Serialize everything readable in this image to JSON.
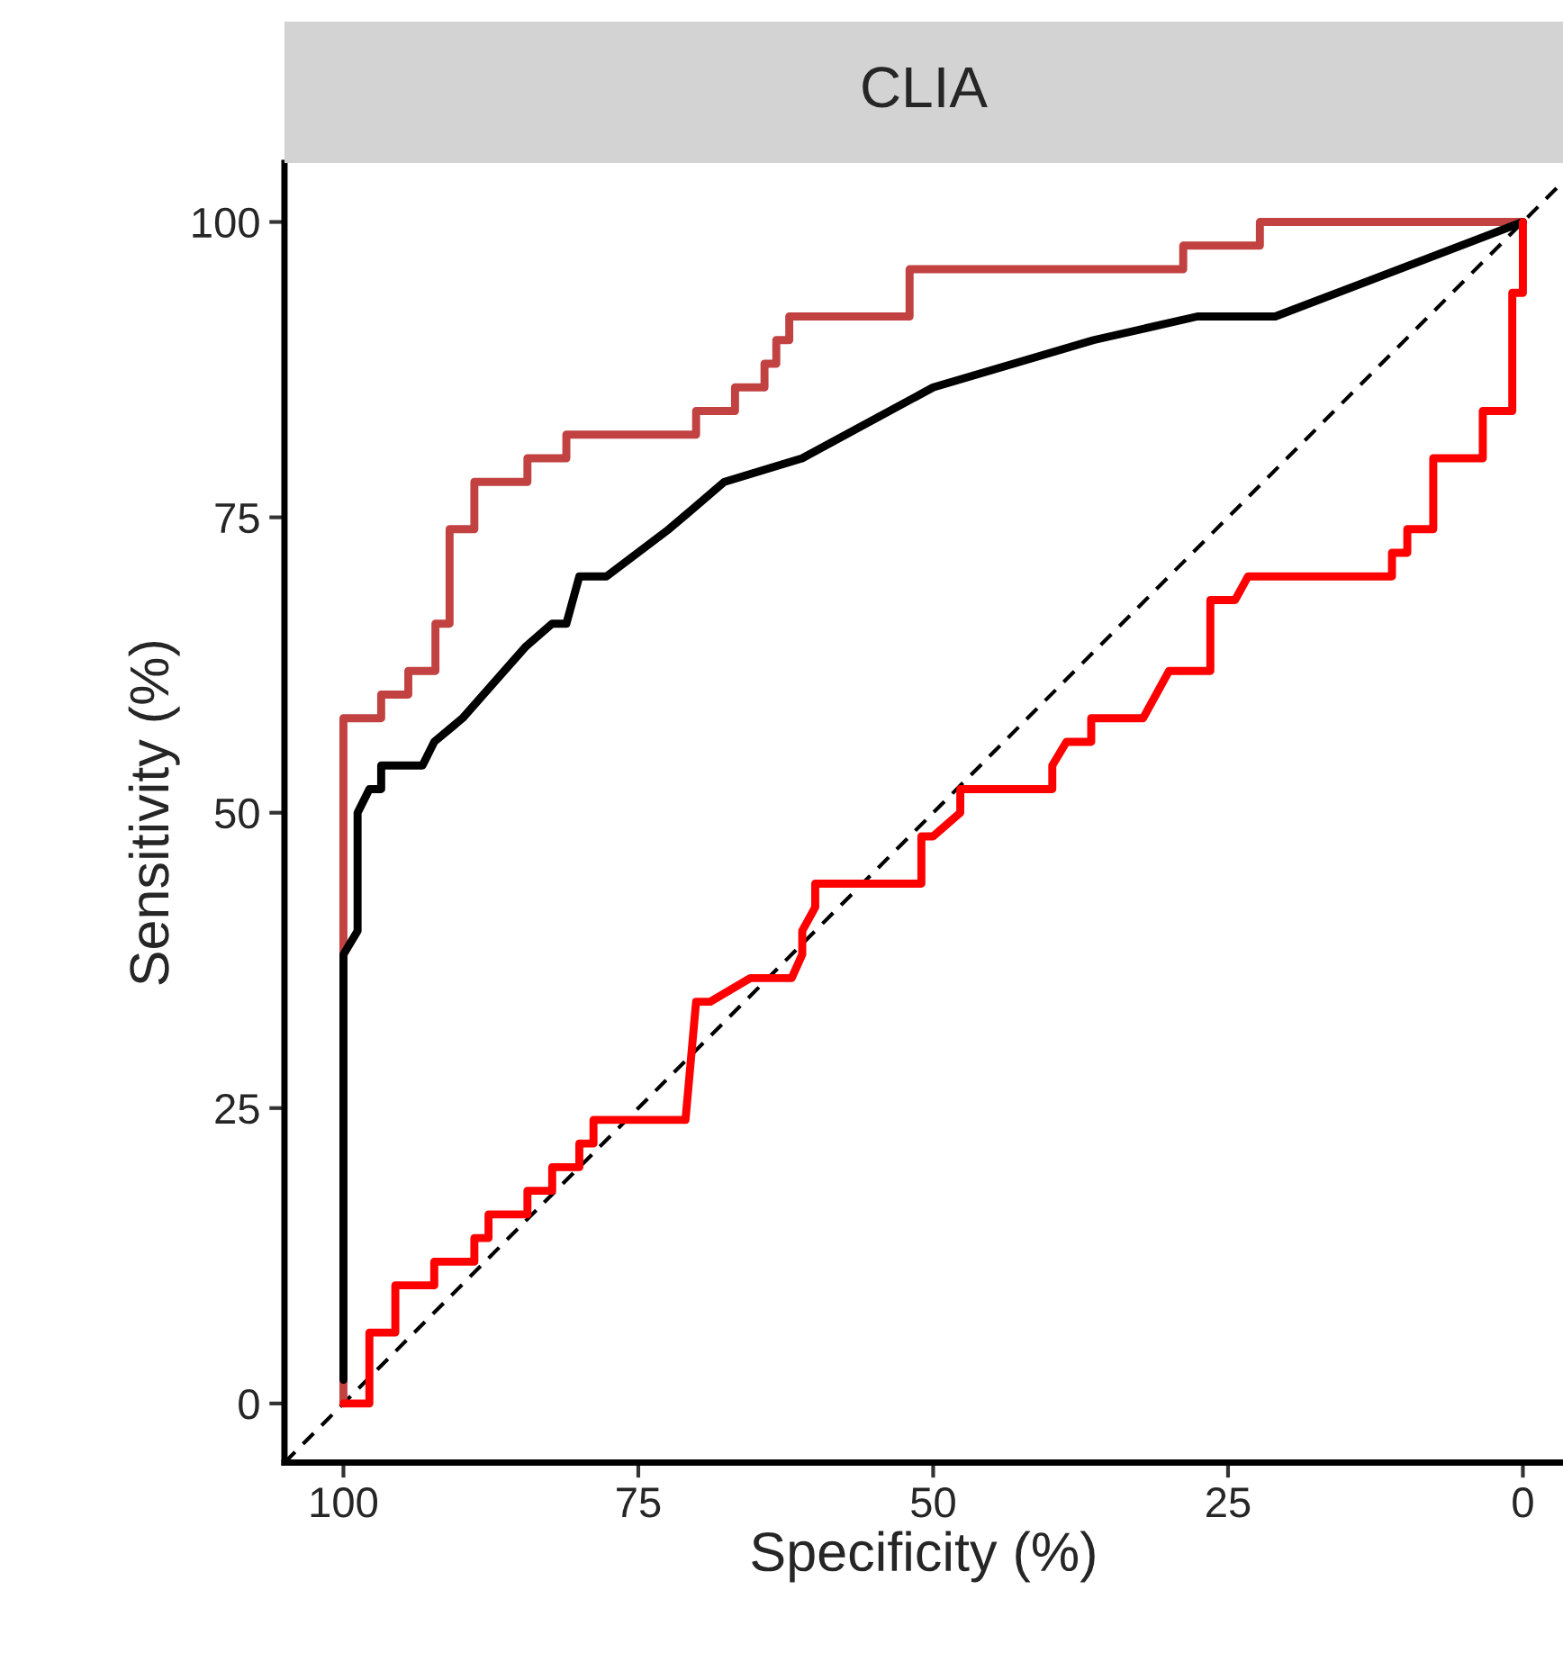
{
  "chart_data": {
    "type": "line",
    "title": "CLIA",
    "xlabel": "Specificity (%)",
    "ylabel": "Sensitivity (%)",
    "xlim": [
      105,
      -3.4
    ],
    "ylim": [
      -5,
      105
    ],
    "xticks": [
      100,
      75,
      50,
      25,
      0
    ],
    "yticks": [
      0,
      25,
      50,
      75,
      100
    ],
    "grid": false,
    "legend": false,
    "marker": "none",
    "series": [
      {
        "color": "#000000",
        "line_style": "dashed",
        "x": [
          105,
          -3.4
        ],
        "values": [
          -5,
          103.4
        ]
      },
      {
        "color": "#c24141",
        "line_style": "solid",
        "x": [
          100,
          100,
          96.8,
          96.8,
          94.5,
          94.5,
          92.2,
          92.2,
          91.0,
          91.0,
          88.9,
          88.9,
          84.4,
          84.4,
          81.1,
          81.1,
          70.1,
          70.1,
          66.8,
          66.8,
          64.3,
          64.3,
          63.3,
          63.3,
          62.2,
          62.2,
          52.0,
          52.0,
          28.8,
          28.8,
          22.3,
          22.3,
          0
        ],
        "values": [
          0,
          58,
          58,
          60,
          60,
          62,
          62,
          66,
          66,
          74,
          74,
          78,
          78,
          80,
          80,
          82,
          82,
          84,
          84,
          86,
          86,
          88,
          88,
          90,
          90,
          92,
          92,
          96,
          96,
          98,
          98,
          100,
          100
        ]
      },
      {
        "color": "#000000",
        "line_style": "solid",
        "x": [
          100,
          100,
          98.8,
          98.8,
          97.8,
          96.8,
          96.8,
          93.3,
          92.3,
          89.9,
          84.6,
          82.3,
          81.1,
          80.0,
          77.7,
          72.4,
          67.7,
          61.1,
          50.0,
          36.4,
          27.6,
          21.0,
          0
        ],
        "values": [
          2,
          38,
          40,
          50,
          52,
          52,
          54,
          54,
          56,
          58,
          64,
          66,
          66,
          70,
          70,
          74,
          78,
          80,
          86,
          90,
          92,
          92,
          100
        ]
      },
      {
        "color": "#ff0000",
        "line_style": "solid",
        "x": [
          100,
          97.8,
          97.8,
          95.6,
          95.6,
          92.3,
          92.3,
          88.9,
          88.9,
          87.7,
          87.7,
          84.4,
          84.4,
          82.3,
          82.3,
          80.0,
          80.0,
          78.8,
          78.8,
          71.0,
          70.1,
          68.9,
          65.5,
          62.0,
          61.1,
          61.1,
          60.0,
          60.0,
          51.0,
          51.0,
          50.0,
          47.7,
          47.7,
          39.9,
          39.9,
          38.7,
          36.6,
          36.6,
          32.2,
          30.0,
          26.5,
          26.5,
          24.4,
          23.3,
          11.1,
          11.1,
          9.8,
          9.8,
          7.6,
          7.6,
          3.4,
          3.4,
          0.9,
          0.9,
          0,
          0
        ],
        "values": [
          0,
          0,
          6,
          6,
          10,
          10,
          12,
          12,
          14,
          14,
          16,
          16,
          18,
          18,
          20,
          20,
          22,
          22,
          24,
          24,
          34,
          34,
          36,
          36,
          38,
          40,
          42,
          44,
          44,
          48,
          48,
          50,
          52,
          52,
          54,
          56,
          56,
          58,
          58,
          62,
          62,
          68,
          68,
          70,
          70,
          72,
          72,
          74,
          74,
          80,
          80,
          84,
          84,
          94,
          94,
          100
        ]
      }
    ]
  }
}
